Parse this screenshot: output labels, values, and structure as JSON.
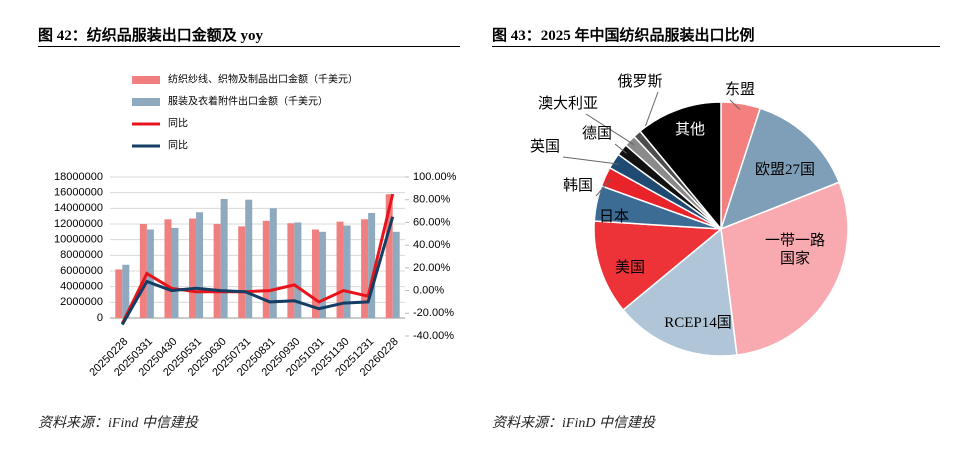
{
  "chart_data": [
    {
      "type": "bar",
      "title": "图 42：纺织品服装出口金额及 yoy",
      "source": "资料来源：iFind  中信建投",
      "categories": [
        "20250228",
        "20250331",
        "20250430",
        "20250531",
        "20250630",
        "20250731",
        "20250831",
        "20250930",
        "20251031",
        "20251130",
        "20251231",
        "20260228"
      ],
      "series": [
        {
          "name": "纺织纱线、织物及制品出口金额（千美元）",
          "type": "bar",
          "color": "#f08080",
          "values": [
            6200000,
            12000000,
            12600000,
            12700000,
            12000000,
            11700000,
            12400000,
            12100000,
            11300000,
            12300000,
            12600000,
            15800000
          ]
        },
        {
          "name": "服装及衣着附件出口金额（千美元）",
          "type": "bar",
          "color": "#8fa9be",
          "values": [
            6800000,
            11300000,
            11500000,
            13500000,
            15200000,
            15100000,
            14000000,
            12200000,
            11000000,
            11800000,
            13400000,
            11000000
          ]
        },
        {
          "name": "同比",
          "type": "line",
          "axis": "y2",
          "color": "#e8141c",
          "values": [
            -29,
            15,
            2,
            -1,
            -1,
            -1,
            0,
            5,
            -10,
            0,
            -5,
            85
          ]
        },
        {
          "name": "同比",
          "type": "line",
          "axis": "y2",
          "color": "#153e64",
          "values": [
            -30,
            8,
            0,
            2,
            0,
            -1,
            -10,
            -9,
            -16,
            -11,
            -10,
            65
          ]
        }
      ],
      "ylim": [
        0,
        18000000
      ],
      "yticks": [
        0,
        2000000,
        4000000,
        6000000,
        8000000,
        10000000,
        12000000,
        14000000,
        16000000,
        18000000
      ],
      "y2lim": [
        -40,
        100
      ],
      "y2ticks": [
        {
          "value": -40,
          "label": "-40.00%"
        },
        {
          "value": -20,
          "label": "-20.00%"
        },
        {
          "value": 0,
          "label": "0.00%"
        },
        {
          "value": 20,
          "label": "20.00%"
        },
        {
          "value": 40,
          "label": "40.00%"
        },
        {
          "value": 60,
          "label": "60.00%"
        },
        {
          "value": 80,
          "label": "80.00%"
        },
        {
          "value": 100,
          "label": "100.00%"
        }
      ],
      "grid": true
    },
    {
      "type": "pie",
      "title": "图 43：2025 年中国纺织品服装出口比例",
      "source": "资料来源：iFinD  中信建投",
      "categories": [
        "东盟",
        "欧盟27国",
        "一带一路国家",
        "RCEP14国",
        "美国",
        "日本",
        "韩国",
        "英国",
        "德国",
        "澳大利亚",
        "俄罗斯",
        "其他"
      ],
      "values": [
        5,
        14,
        29,
        16,
        12,
        4.5,
        2.5,
        2,
        1.5,
        1.5,
        1,
        11
      ],
      "colors": [
        "#f47f7f",
        "#7f9fb8",
        "#f9aab0",
        "#b0c6d8",
        "#ee3338",
        "#3c6b94",
        "#e8232a",
        "#1f4a72",
        "#111111",
        "#8a8a8a",
        "#4d4d4d",
        "#000000"
      ]
    }
  ]
}
